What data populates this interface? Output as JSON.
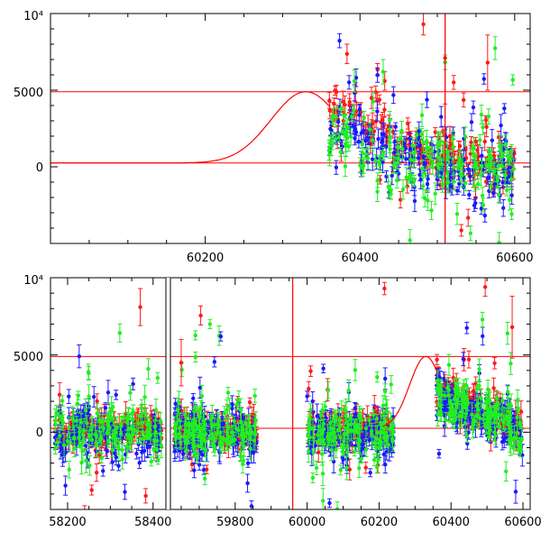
{
  "colors": {
    "model": "#ff0000",
    "series_red": "#ff1a1a",
    "series_green": "#22ee22",
    "series_blue": "#1a1aff",
    "frame": "#000000"
  },
  "chart_data": [
    {
      "type": "scatter",
      "panel": "top",
      "title": "",
      "xlabel": "",
      "ylabel": "",
      "xlim": [
        60000,
        60620
      ],
      "ylim": [
        -5000,
        10000
      ],
      "xticks": [
        60200,
        60400,
        60600
      ],
      "xtick_labels": [
        "60200",
        "60400",
        "60600"
      ],
      "yticks": [
        0,
        5000,
        10000
      ],
      "ytick_labels": [
        "0",
        "5000",
        "10⁴"
      ],
      "hlines": [
        4900,
        250
      ],
      "model_curve": {
        "shape": "gaussian",
        "baseline": 250,
        "peak": 4900,
        "center": 60330,
        "sigma": 45,
        "x_range": [
          60000,
          60360
        ]
      },
      "series": [
        {
          "color": "red",
          "x_range": [
            60360,
            60600
          ],
          "typical_values": [
            3500,
            2500,
            1500,
            800,
            400,
            300
          ],
          "spread": 1200
        },
        {
          "color": "blue",
          "x_range": [
            60360,
            60600
          ],
          "typical_values": [
            2500,
            1500,
            500,
            0,
            -200,
            -300
          ],
          "spread": 1600
        },
        {
          "color": "green",
          "x_range": [
            60360,
            60600
          ],
          "typical_values": [
            2000,
            1200,
            500,
            200,
            0,
            0
          ],
          "spread": 1800
        }
      ],
      "outliers": [
        {
          "color": "red",
          "x": 60482,
          "y": 9300,
          "err": 700
        },
        {
          "color": "red",
          "x": 60510,
          "y": 7100,
          "err": 3000
        },
        {
          "color": "red",
          "x": 60565,
          "y": 6800,
          "err": 1800
        },
        {
          "color": "red",
          "x": 60432,
          "y": 5600,
          "err": 600
        },
        {
          "color": "green",
          "x": 60430,
          "y": 6200,
          "err": 800
        }
      ],
      "vlines": [
        {
          "color": "red",
          "x": 60510,
          "y_from": -5000,
          "y_to": 10000
        }
      ]
    },
    {
      "type": "scatter",
      "panel": "bottom",
      "title": "",
      "xlabel": "",
      "ylabel": "",
      "segments": [
        {
          "xlim": [
            58160,
            58430
          ],
          "xticks": [
            58200,
            58400
          ],
          "xtick_labels": [
            "58200",
            "58400"
          ],
          "data_range": [
            58170,
            58420
          ]
        },
        {
          "xlim": [
            59620,
            60620
          ],
          "xticks": [
            59800,
            60000,
            60200,
            60400,
            60600
          ],
          "xtick_labels": [
            "59800",
            "60000",
            "60200",
            "60400",
            "60600"
          ],
          "data_range": [
            59630,
            59860
          ],
          "data_range2": [
            60000,
            60240
          ],
          "data_range3": [
            60360,
            60600
          ]
        }
      ],
      "ylim": [
        -5000,
        10000
      ],
      "yticks": [
        0,
        5000,
        10000
      ],
      "ytick_labels": [
        "0",
        "5000",
        "10⁴"
      ],
      "hlines": [
        4900,
        250
      ],
      "model_curve": {
        "shape": "gaussian",
        "baseline": 250,
        "peak": 4900,
        "center": 60330,
        "sigma": 45,
        "x_range": [
          60210,
          60360
        ]
      },
      "vlines": [
        {
          "color": "red",
          "x": 59960,
          "y_from": -5000,
          "y_to": 10000
        }
      ],
      "series": [
        {
          "color": "red",
          "typical_value": 200,
          "spread": 900
        },
        {
          "color": "blue",
          "typical_value": -200,
          "spread": 1300
        },
        {
          "color": "green",
          "typical_value": 0,
          "spread": 1500
        }
      ],
      "outliers": [
        {
          "color": "red",
          "x": 58370,
          "y": 8100,
          "err": 1200
        },
        {
          "color": "red",
          "x": 60215,
          "y": 9300,
          "err": 400
        },
        {
          "color": "red",
          "x": 60495,
          "y": 9400,
          "err": 600
        },
        {
          "color": "red",
          "x": 60570,
          "y": 6800,
          "err": 2000
        },
        {
          "color": "green",
          "x": 59730,
          "y": 7000,
          "err": 300
        },
        {
          "color": "blue",
          "x": 59760,
          "y": 6200,
          "err": 300
        },
        {
          "color": "red",
          "x": 59650,
          "y": 4500,
          "err": 1500
        }
      ]
    }
  ]
}
